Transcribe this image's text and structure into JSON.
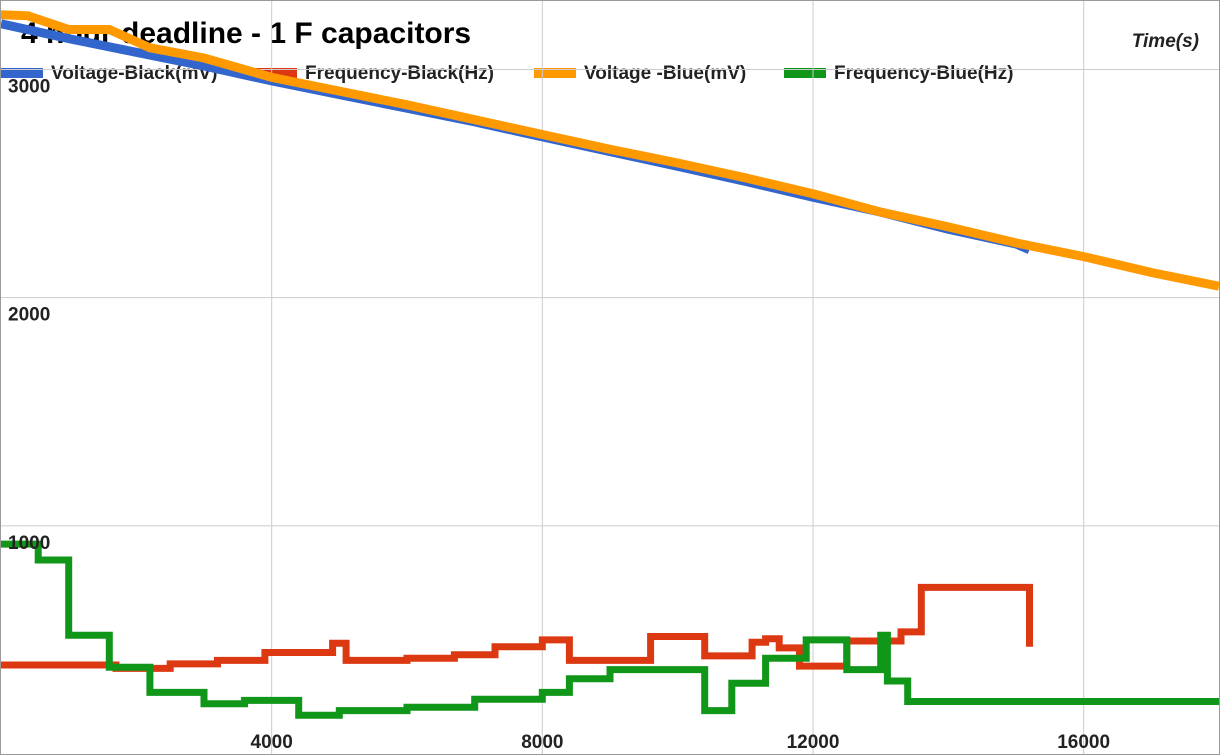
{
  "chart_data": {
    "type": "line",
    "title": "4 hour deadline - 1 F capacitors",
    "xlabel": "Time(s)",
    "ylabel": "",
    "xlim": [
      0,
      18000
    ],
    "ylim": [
      0,
      3300
    ],
    "x_ticks": [
      4000,
      8000,
      12000,
      16000
    ],
    "x_tick_labels": [
      "4000",
      "8000",
      "12000",
      "16000"
    ],
    "y_ticks": [
      1000,
      2000,
      3000
    ],
    "y_tick_labels": [
      "1000",
      "2000",
      "3000"
    ],
    "grid": true,
    "legend_position": "top-left",
    "series": [
      {
        "name": "Voltage-Black(mV)",
        "color": "#3366cc",
        "width": 9,
        "step": false,
        "x": [
          0,
          1000,
          2000,
          3000,
          4000,
          5000,
          6000,
          7000,
          8000,
          9000,
          10000,
          11000,
          12000,
          13000,
          14000,
          15000,
          15200
        ],
        "y": [
          3200,
          3135,
          3075,
          3015,
          2950,
          2890,
          2830,
          2770,
          2705,
          2640,
          2575,
          2510,
          2440,
          2375,
          2300,
          2235,
          2210
        ]
      },
      {
        "name": "Frequency-Black(Hz)",
        "color": "#dc3912",
        "width": 7,
        "step": true,
        "x": [
          0,
          1700,
          2500,
          3200,
          3900,
          4900,
          5100,
          6000,
          6700,
          7300,
          8000,
          8400,
          9200,
          9600,
          10400,
          11100,
          11300,
          11500,
          11800,
          12500,
          13300,
          13600,
          15200
        ],
        "y": [
          390,
          375,
          395,
          410,
          445,
          485,
          410,
          420,
          435,
          470,
          500,
          410,
          410,
          515,
          430,
          490,
          505,
          465,
          385,
          495,
          535,
          730,
          470
        ]
      },
      {
        "name": "Voltage -Blue(mV)",
        "color": "#ff9900",
        "width": 9,
        "step": false,
        "x": [
          0,
          400,
          1000,
          1600,
          2200,
          3000,
          4000,
          5000,
          6000,
          7000,
          8000,
          9000,
          10000,
          11000,
          12000,
          13000,
          14000,
          15000,
          16000,
          17000,
          18000
        ],
        "y": [
          3240,
          3235,
          3175,
          3175,
          3095,
          3050,
          2965,
          2905,
          2845,
          2780,
          2715,
          2650,
          2590,
          2525,
          2455,
          2375,
          2310,
          2240,
          2180,
          2110,
          2050
        ]
      },
      {
        "name": "Frequency-Blue(Hz)",
        "color": "#109618",
        "width": 7,
        "step": true,
        "x": [
          0,
          550,
          1000,
          1600,
          2200,
          3000,
          3600,
          4400,
          5000,
          6000,
          7000,
          8000,
          8400,
          9000,
          10400,
          10800,
          11300,
          11900,
          12500,
          13000,
          13100,
          13400,
          18000
        ],
        "y": [
          920,
          850,
          520,
          380,
          270,
          220,
          235,
          170,
          190,
          205,
          240,
          270,
          330,
          370,
          190,
          310,
          420,
          500,
          370,
          520,
          320,
          230,
          220
        ]
      }
    ]
  }
}
